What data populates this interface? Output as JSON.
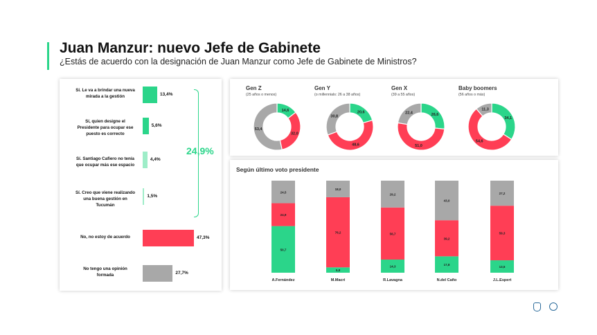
{
  "title": "Juan Manzur: nuevo Jefe de Gabinete",
  "subtitle": "¿Estás de acuerdo con la designación de Juan Manzur como Jefe de Gabinete de Ministros?",
  "colors": {
    "green": "#2bd58a",
    "green_light": "#9eedc8",
    "red": "#ff3e55",
    "gray": "#a8a8a8"
  },
  "chart_data": [
    {
      "type": "bar",
      "orientation": "horizontal",
      "categories": [
        "Sí. Le va a brindar una nueva mirada a la gestión",
        "Sí, quien designe el Presidente para ocupar ese puesto es correcto",
        "Sí. Santiago Cafiero no tenía que ocupar más ese espacio",
        "Sí. Creo que viene realizando una buena gestión en Tucumán",
        "No, no estoy de acuerdo",
        "No tengo una opinión formada"
      ],
      "values": [
        13.4,
        5.6,
        4.4,
        1.5,
        47.3,
        27.7
      ],
      "value_labels": [
        "13,4%",
        "5,6%",
        "4,4%",
        "1,5%",
        "47,3%",
        "27,7%"
      ],
      "group_total": "24,9%"
    },
    {
      "type": "pie",
      "donuts": [
        {
          "name": "Gen Z",
          "sub": "(25 años o menos)",
          "values": [
            14.6,
            32.0,
            53.4
          ],
          "labels": [
            "14,6",
            "32,0",
            "53,4"
          ]
        },
        {
          "name": "Gen Y",
          "sub": "(o millennials: 26 a 38 años)",
          "values": [
            20.6,
            48.6,
            30.8
          ],
          "labels": [
            "20,6",
            "48,6",
            "30,8"
          ]
        },
        {
          "name": "Gen X",
          "sub": "(39 a 55 años)",
          "values": [
            26.6,
            51.0,
            22.4
          ],
          "labels": [
            "26,6",
            "51,0",
            "22,4"
          ]
        },
        {
          "name": "Baby boomers",
          "sub": "(56 años o más)",
          "values": [
            34.1,
            54.6,
            11.3
          ],
          "labels": [
            "34,1",
            "54,6",
            "11,3"
          ]
        }
      ]
    },
    {
      "type": "bar",
      "stacked": true,
      "title": "Según último voto presidente",
      "categories": [
        "A.Fernández",
        "M.Macri",
        "R.Lavagna",
        "N.del Caño",
        "J.L.Espert"
      ],
      "series": [
        {
          "values": [
            50.7,
            5.8,
            14.3,
            17.8,
            13.5
          ],
          "labels": [
            "50,7",
            "5,8",
            "14,3",
            "17,8",
            "13,5"
          ]
        },
        {
          "values": [
            24.9,
            76.2,
            56.7,
            39.2,
            59.3
          ],
          "labels": [
            "24,9",
            "76,2",
            "56,7",
            "39,2",
            "59,3"
          ]
        },
        {
          "values": [
            24.5,
            18.0,
            29.2,
            43.0,
            27.2
          ],
          "labels": [
            "24,5",
            "18,0",
            "29,2",
            "43,0",
            "27,2"
          ]
        }
      ]
    }
  ]
}
